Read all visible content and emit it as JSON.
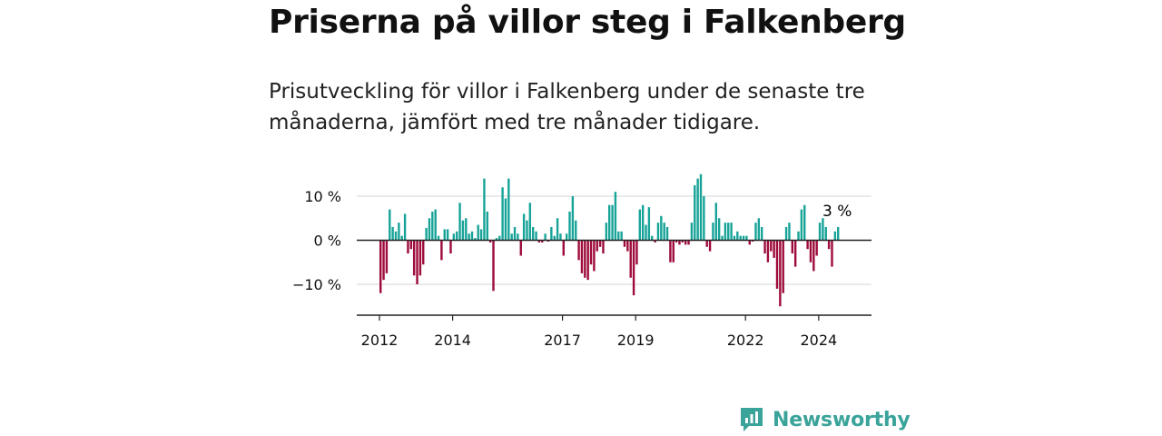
{
  "title": "Priserna på villor steg i Falkenberg",
  "subtitle": "Prisutveckling för villor i Falkenberg under de senaste tre månaderna, jämfört med tre månader tidigare.",
  "logo_text": "Newsworthy",
  "colors": {
    "positive": "#17a398",
    "negative": "#9e0b3a",
    "text": "#111111",
    "grid": "#dddddd",
    "logo": "#3aa39a"
  },
  "chart_data": {
    "type": "bar",
    "title": "",
    "xlabel": "",
    "ylabel": "",
    "ylim": [
      -17,
      17
    ],
    "y_ticks": [
      10,
      0,
      -10
    ],
    "y_tick_labels": [
      "10 %",
      "0 %",
      "−10 %"
    ],
    "x_ticks": [
      2012,
      2014,
      2017,
      2019,
      2022,
      2024
    ],
    "x_tick_labels": [
      "2012",
      "2014",
      "2017",
      "2019",
      "2022",
      "2024"
    ],
    "start": "2012-01",
    "end": "2024-11",
    "last_value_label": "3 %",
    "grid": true,
    "values": [
      -12,
      -9,
      -7.5,
      7,
      3,
      2,
      4,
      1,
      6,
      -3,
      -2,
      -8,
      -10,
      -8,
      -5.5,
      2.8,
      5,
      6.5,
      7,
      1,
      -4.5,
      2.5,
      2.5,
      -3,
      1.5,
      2,
      8.5,
      4.5,
      5,
      1.5,
      2,
      0.5,
      3.5,
      2.5,
      14,
      6.5,
      -0.5,
      -11.5,
      0.5,
      1,
      12,
      9.5,
      14,
      1.5,
      3,
      1.5,
      -3.5,
      6,
      4.5,
      8.5,
      3,
      2,
      -0.5,
      -0.5,
      1.5,
      -0.3,
      3,
      1,
      5,
      1.5,
      -3.5,
      1.5,
      6.5,
      10,
      4.5,
      -4.5,
      -7.5,
      -8.5,
      -9,
      -5.5,
      -7,
      -2.5,
      -1.5,
      -3,
      4,
      8,
      8,
      11,
      2,
      2,
      -1.5,
      -2.5,
      -8.5,
      -12.5,
      -5.5,
      7,
      8,
      3.5,
      7.5,
      1,
      -0.5,
      4,
      5.5,
      4,
      3,
      -5,
      -5,
      -0.5,
      -1,
      -0.5,
      -1,
      -1,
      4,
      12.5,
      14,
      15,
      10,
      -1.5,
      -2.5,
      4,
      8.5,
      5,
      1,
      4,
      4,
      4,
      1,
      2,
      1,
      1,
      1,
      -1,
      -0.3,
      4,
      5,
      3,
      -3,
      -5,
      -2.5,
      -4,
      -11,
      -15,
      -12,
      3,
      4,
      -3,
      -6,
      2,
      7,
      8,
      -2,
      -5,
      -7,
      -3.5,
      4,
      5,
      3,
      -2,
      -6,
      2,
      3
    ]
  }
}
